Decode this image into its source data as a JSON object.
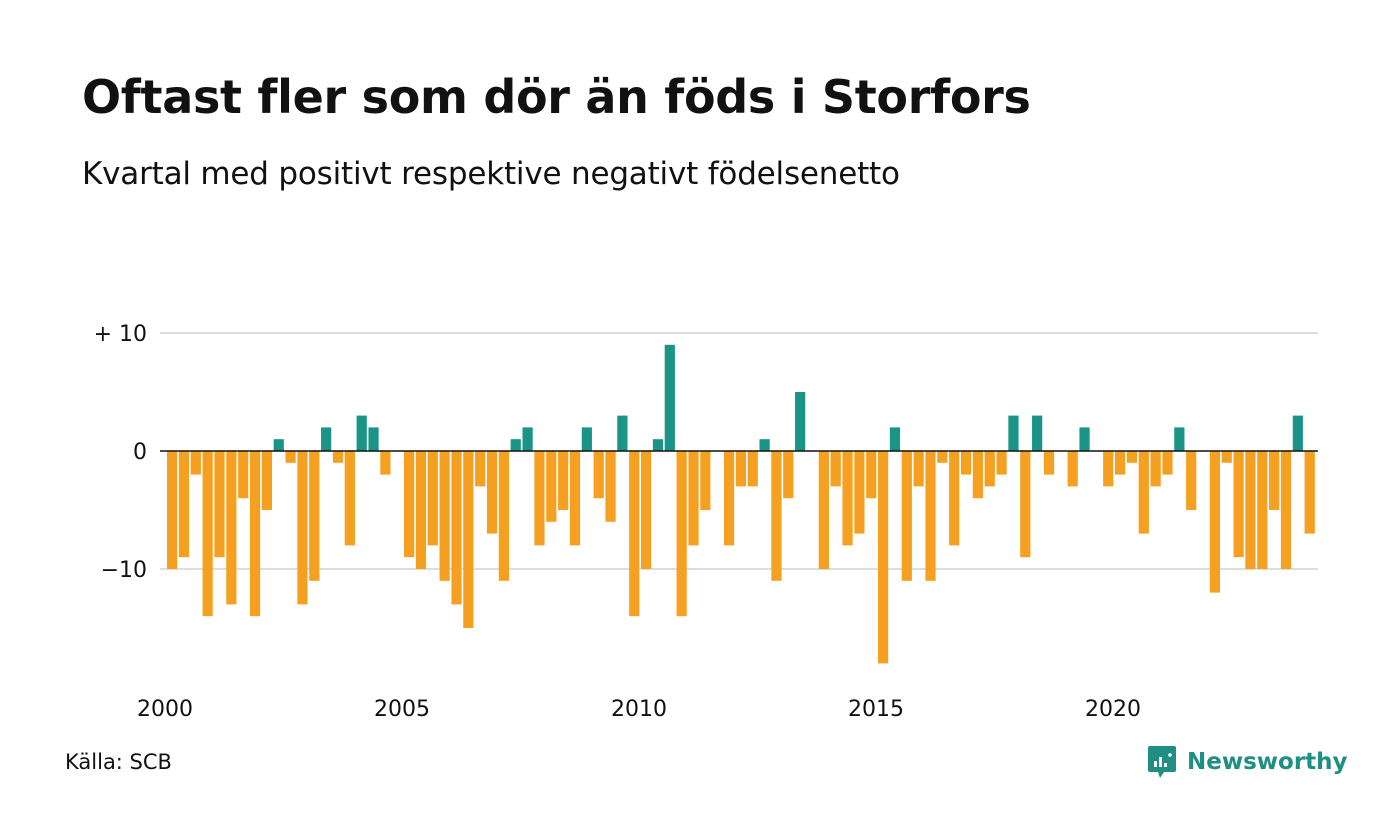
{
  "title": "Oftast fler som dör än föds i Storfors",
  "subtitle": "Kvartal med positivt respektive negativt födelsenetto",
  "source": "Källa: SCB",
  "brand": {
    "name": "Newsworthy",
    "icon": "newsworthy-logo-icon"
  },
  "colors": {
    "positive": "#1a9486",
    "negative": "#f5a021",
    "grid": "#dddddd",
    "axis": "#111111"
  },
  "chart_data": {
    "type": "bar",
    "title": "Oftast fler som dör än föds i Storfors",
    "subtitle": "Kvartal med positivt respektive negativt födelsenetto",
    "xlabel": "",
    "ylabel": "",
    "ylim": [
      -18,
      10
    ],
    "yticks": [
      {
        "value": 10,
        "label": "+ 10"
      },
      {
        "value": 0,
        "label": "0"
      },
      {
        "value": -10,
        "label": "−10"
      }
    ],
    "xticks": [
      "2000",
      "2005",
      "2010",
      "2015",
      "2020"
    ],
    "start_year": 2000,
    "grid": true,
    "categories": [
      "2000 Q1",
      "2000 Q2",
      "2000 Q3",
      "2000 Q4",
      "2001 Q1",
      "2001 Q2",
      "2001 Q3",
      "2001 Q4",
      "2002 Q1",
      "2002 Q2",
      "2002 Q3",
      "2002 Q4",
      "2003 Q1",
      "2003 Q2",
      "2003 Q3",
      "2003 Q4",
      "2004 Q1",
      "2004 Q2",
      "2004 Q3",
      "2004 Q4",
      "2005 Q1",
      "2005 Q2",
      "2005 Q3",
      "2005 Q4",
      "2006 Q1",
      "2006 Q2",
      "2006 Q3",
      "2006 Q4",
      "2007 Q1",
      "2007 Q2",
      "2007 Q3",
      "2007 Q4",
      "2008 Q1",
      "2008 Q2",
      "2008 Q3",
      "2008 Q4",
      "2009 Q1",
      "2009 Q2",
      "2009 Q3",
      "2009 Q4",
      "2010 Q1",
      "2010 Q2",
      "2010 Q3",
      "2010 Q4",
      "2011 Q1",
      "2011 Q2",
      "2011 Q3",
      "2011 Q4",
      "2012 Q1",
      "2012 Q2",
      "2012 Q3",
      "2012 Q4",
      "2013 Q1",
      "2013 Q2",
      "2013 Q3",
      "2013 Q4",
      "2014 Q1",
      "2014 Q2",
      "2014 Q3",
      "2014 Q4",
      "2015 Q1",
      "2015 Q2",
      "2015 Q3",
      "2015 Q4",
      "2016 Q1",
      "2016 Q2",
      "2016 Q3",
      "2016 Q4",
      "2017 Q1",
      "2017 Q2",
      "2017 Q3",
      "2017 Q4",
      "2018 Q1",
      "2018 Q2",
      "2018 Q3",
      "2018 Q4",
      "2019 Q1",
      "2019 Q2",
      "2019 Q3",
      "2019 Q4",
      "2020 Q1",
      "2020 Q2",
      "2020 Q3",
      "2020 Q4",
      "2021 Q1",
      "2021 Q2",
      "2021 Q3",
      "2021 Q4",
      "2022 Q1",
      "2022 Q2",
      "2022 Q3",
      "2022 Q4",
      "2023 Q1",
      "2023 Q2",
      "2023 Q3",
      "2023 Q4",
      "2024 Q1",
      "2024 Q2"
    ],
    "values": [
      -10,
      -9,
      -2,
      -14,
      -9,
      -13,
      -4,
      -14,
      -5,
      1,
      -1,
      -13,
      -11,
      2,
      -1,
      -8,
      3,
      2,
      -2,
      0,
      -9,
      -10,
      -8,
      -11,
      -13,
      -15,
      -3,
      -7,
      -11,
      1,
      2,
      -8,
      -6,
      -5,
      -8,
      2,
      -4,
      -6,
      3,
      -14,
      -10,
      1,
      9,
      -14,
      -8,
      -5,
      0,
      -8,
      -3,
      -3,
      1,
      -11,
      -4,
      5,
      0,
      -10,
      -3,
      -8,
      -7,
      -4,
      -18,
      2,
      -11,
      -3,
      -11,
      -1,
      -8,
      -2,
      -4,
      -3,
      -2,
      3,
      -9,
      3,
      -2,
      0,
      -3,
      2,
      0,
      -3,
      -2,
      -1,
      -7,
      -3,
      -2,
      2,
      -5,
      0,
      -12,
      -1,
      -9,
      -10,
      -10,
      -5,
      -10,
      3,
      -7,
      0
    ]
  }
}
